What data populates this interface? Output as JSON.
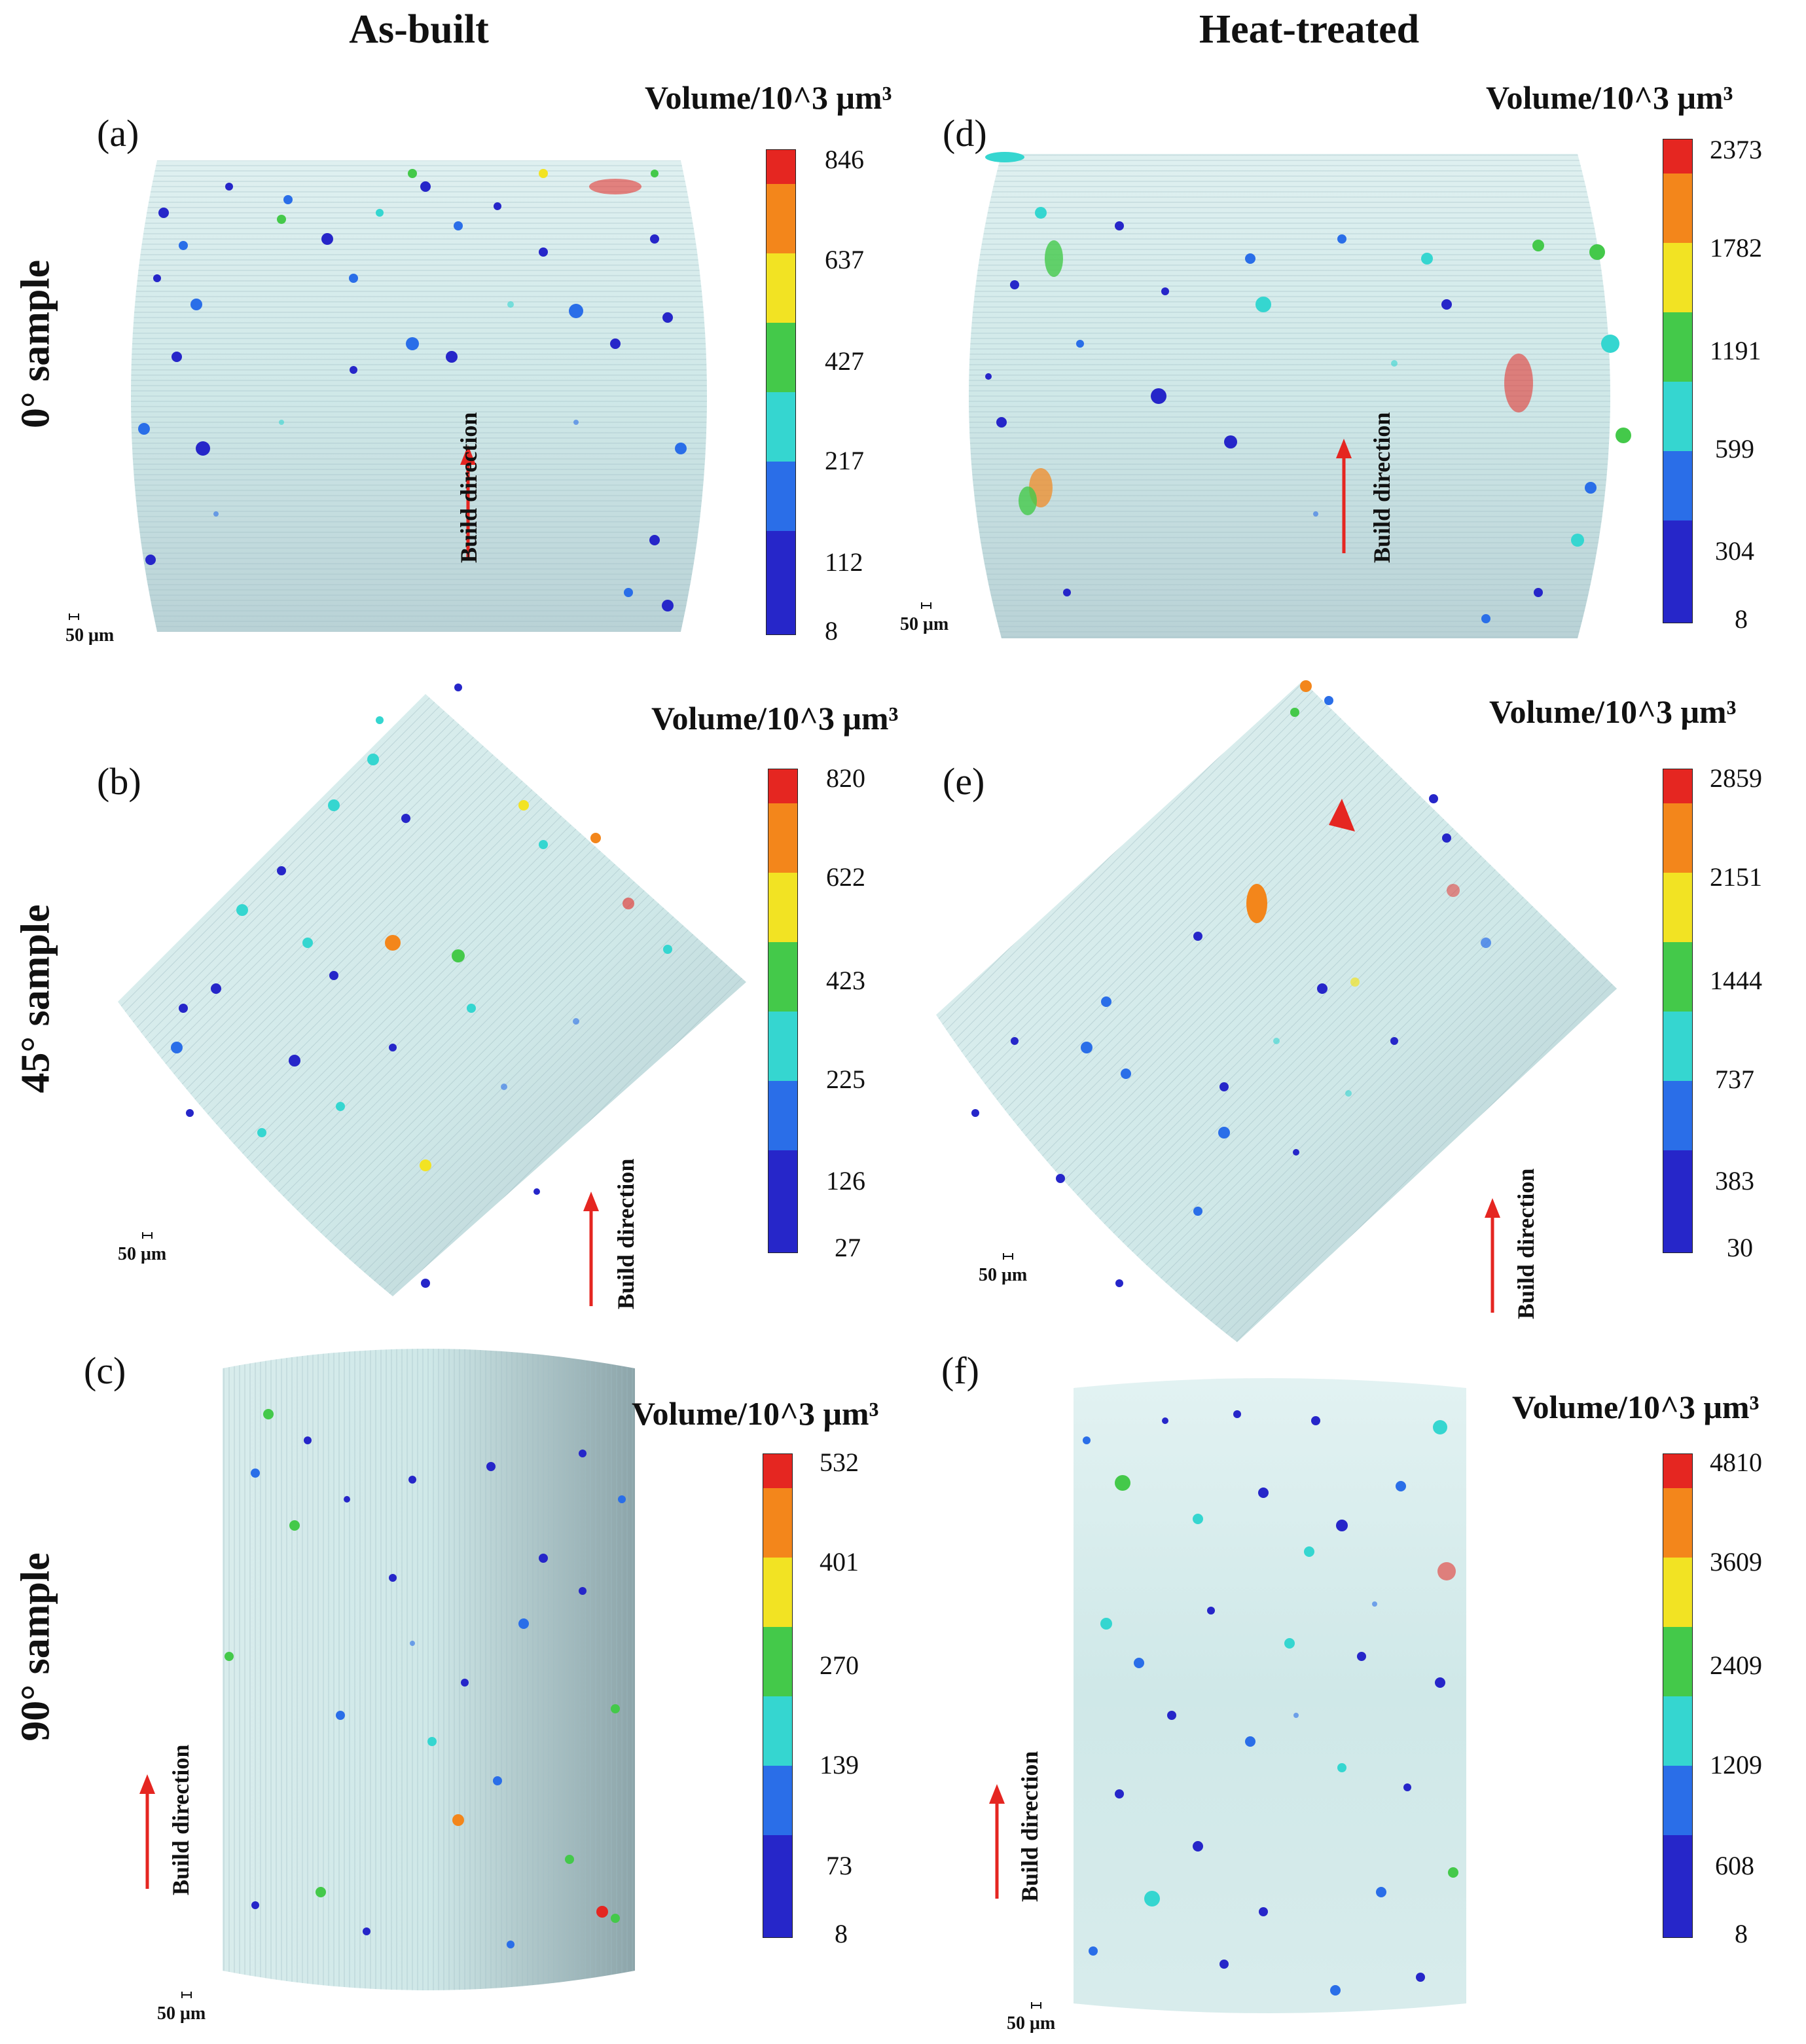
{
  "columns": {
    "as_built": "As-built",
    "heat_treated": "Heat-treated"
  },
  "rows": {
    "r0": "0° sample",
    "r45": "45° sample",
    "r90": "90° sample"
  },
  "colormap": [
    "#2626c9",
    "#2a6ee8",
    "#35d6d0",
    "#44c94a",
    "#f2e323",
    "#f3861b",
    "#e52621"
  ],
  "panels": {
    "a": {
      "letter": "(a)",
      "cb_title": "Volume/10^3 μm³",
      "ticks": [
        "846",
        "637",
        "427",
        "217",
        "112",
        "8"
      ],
      "scale": "50 μm",
      "build_direction": "Build direction"
    },
    "b": {
      "letter": "(b)",
      "cb_title": "Volume/10^3 μm³",
      "ticks": [
        "820",
        "622",
        "423",
        "225",
        "126",
        "27"
      ],
      "scale": "50 μm",
      "build_direction": "Build direction"
    },
    "c": {
      "letter": "(c)",
      "cb_title": "Volume/10^3 μm³",
      "ticks": [
        "532",
        "401",
        "270",
        "139",
        "73",
        "8"
      ],
      "scale": "50 μm",
      "build_direction": "Build direction"
    },
    "d": {
      "letter": "(d)",
      "cb_title": "Volume/10^3 μm³",
      "ticks": [
        "2373",
        "1782",
        "1191",
        "599",
        "304",
        "8"
      ],
      "scale": "50 μm",
      "build_direction": "Build direction"
    },
    "e": {
      "letter": "(e)",
      "cb_title": "Volume/10^3 μm³",
      "ticks": [
        "2859",
        "2151",
        "1444",
        "737",
        "383",
        "30"
      ],
      "scale": "50 μm",
      "build_direction": "Build direction"
    },
    "f": {
      "letter": "(f)",
      "cb_title": "Volume/10^3 μm³",
      "ticks": [
        "4810",
        "3609",
        "2409",
        "1209",
        "608",
        "8"
      ],
      "scale": "50 μm",
      "build_direction": "Build direction"
    }
  }
}
